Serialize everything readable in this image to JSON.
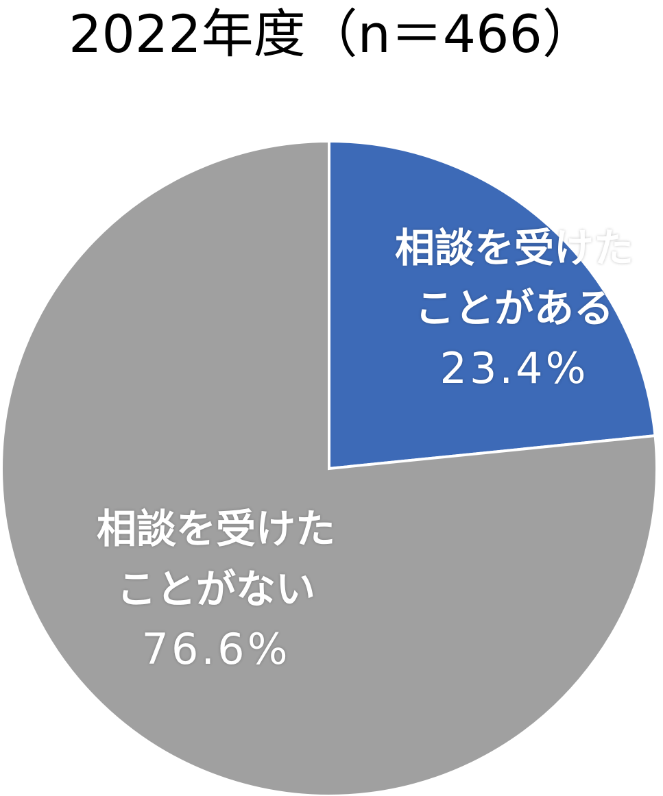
{
  "chart_data": {
    "type": "pie",
    "title": "2022年度（n＝466）",
    "categories": [
      "相談を受けたことがある",
      "相談を受けたことがない"
    ],
    "values": [
      23.4,
      76.6
    ],
    "value_labels": [
      "23.4%",
      "76.6%"
    ],
    "colors": [
      "#3d6ab7",
      "#a0a0a0"
    ]
  }
}
